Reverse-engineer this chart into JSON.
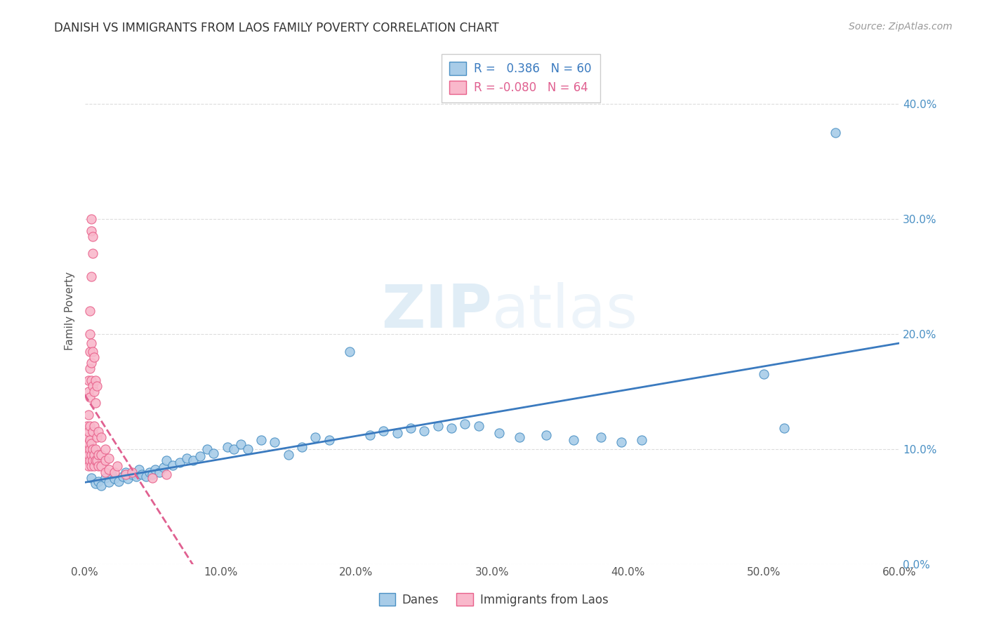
{
  "title": "DANISH VS IMMIGRANTS FROM LAOS FAMILY POVERTY CORRELATION CHART",
  "source": "Source: ZipAtlas.com",
  "ylabel": "Family Poverty",
  "xlim": [
    0.0,
    0.6
  ],
  "ylim": [
    0.0,
    0.44
  ],
  "xticks": [
    0.0,
    0.1,
    0.2,
    0.3,
    0.4,
    0.5,
    0.6
  ],
  "xticklabels": [
    "0.0%",
    "10.0%",
    "20.0%",
    "30.0%",
    "40.0%",
    "50.0%",
    "60.0%"
  ],
  "yticks": [
    0.0,
    0.1,
    0.2,
    0.3,
    0.4
  ],
  "yticklabels_right": [
    "0.0%",
    "10.0%",
    "20.0%",
    "30.0%",
    "40.0%"
  ],
  "legend_blue_label": "Danes",
  "legend_pink_label": "Immigrants from Laos",
  "blue_color": "#a8cce8",
  "pink_color": "#f9b8cb",
  "blue_edge_color": "#4a90c4",
  "pink_edge_color": "#e8608a",
  "blue_line_color": "#3a7abf",
  "pink_line_color": "#e06090",
  "blue_scatter": [
    [
      0.005,
      0.075
    ],
    [
      0.008,
      0.07
    ],
    [
      0.01,
      0.072
    ],
    [
      0.012,
      0.068
    ],
    [
      0.015,
      0.075
    ],
    [
      0.018,
      0.071
    ],
    [
      0.02,
      0.078
    ],
    [
      0.022,
      0.074
    ],
    [
      0.025,
      0.072
    ],
    [
      0.028,
      0.076
    ],
    [
      0.03,
      0.08
    ],
    [
      0.032,
      0.074
    ],
    [
      0.035,
      0.078
    ],
    [
      0.038,
      0.076
    ],
    [
      0.04,
      0.082
    ],
    [
      0.042,
      0.078
    ],
    [
      0.045,
      0.076
    ],
    [
      0.048,
      0.08
    ],
    [
      0.05,
      0.078
    ],
    [
      0.052,
      0.082
    ],
    [
      0.055,
      0.08
    ],
    [
      0.058,
      0.084
    ],
    [
      0.06,
      0.09
    ],
    [
      0.065,
      0.086
    ],
    [
      0.07,
      0.088
    ],
    [
      0.075,
      0.092
    ],
    [
      0.08,
      0.09
    ],
    [
      0.085,
      0.094
    ],
    [
      0.09,
      0.1
    ],
    [
      0.095,
      0.096
    ],
    [
      0.105,
      0.102
    ],
    [
      0.11,
      0.1
    ],
    [
      0.115,
      0.104
    ],
    [
      0.12,
      0.1
    ],
    [
      0.13,
      0.108
    ],
    [
      0.14,
      0.106
    ],
    [
      0.15,
      0.095
    ],
    [
      0.16,
      0.102
    ],
    [
      0.17,
      0.11
    ],
    [
      0.18,
      0.108
    ],
    [
      0.195,
      0.185
    ],
    [
      0.21,
      0.112
    ],
    [
      0.22,
      0.116
    ],
    [
      0.23,
      0.114
    ],
    [
      0.24,
      0.118
    ],
    [
      0.25,
      0.116
    ],
    [
      0.26,
      0.12
    ],
    [
      0.27,
      0.118
    ],
    [
      0.28,
      0.122
    ],
    [
      0.29,
      0.12
    ],
    [
      0.305,
      0.114
    ],
    [
      0.32,
      0.11
    ],
    [
      0.34,
      0.112
    ],
    [
      0.36,
      0.108
    ],
    [
      0.38,
      0.11
    ],
    [
      0.395,
      0.106
    ],
    [
      0.41,
      0.108
    ],
    [
      0.5,
      0.165
    ],
    [
      0.515,
      0.118
    ],
    [
      0.553,
      0.375
    ]
  ],
  "pink_scatter": [
    [
      0.002,
      0.09
    ],
    [
      0.002,
      0.1
    ],
    [
      0.002,
      0.11
    ],
    [
      0.002,
      0.12
    ],
    [
      0.003,
      0.085
    ],
    [
      0.003,
      0.095
    ],
    [
      0.003,
      0.105
    ],
    [
      0.003,
      0.115
    ],
    [
      0.003,
      0.13
    ],
    [
      0.003,
      0.15
    ],
    [
      0.003,
      0.16
    ],
    [
      0.004,
      0.09
    ],
    [
      0.004,
      0.1
    ],
    [
      0.004,
      0.108
    ],
    [
      0.004,
      0.12
    ],
    [
      0.004,
      0.145
    ],
    [
      0.004,
      0.17
    ],
    [
      0.004,
      0.185
    ],
    [
      0.004,
      0.2
    ],
    [
      0.004,
      0.22
    ],
    [
      0.005,
      0.085
    ],
    [
      0.005,
      0.095
    ],
    [
      0.005,
      0.105
    ],
    [
      0.005,
      0.16
    ],
    [
      0.005,
      0.175
    ],
    [
      0.005,
      0.192
    ],
    [
      0.005,
      0.25
    ],
    [
      0.005,
      0.29
    ],
    [
      0.005,
      0.3
    ],
    [
      0.006,
      0.09
    ],
    [
      0.006,
      0.1
    ],
    [
      0.006,
      0.115
    ],
    [
      0.006,
      0.155
    ],
    [
      0.006,
      0.185
    ],
    [
      0.006,
      0.27
    ],
    [
      0.006,
      0.285
    ],
    [
      0.007,
      0.085
    ],
    [
      0.007,
      0.095
    ],
    [
      0.007,
      0.12
    ],
    [
      0.007,
      0.15
    ],
    [
      0.007,
      0.18
    ],
    [
      0.008,
      0.09
    ],
    [
      0.008,
      0.1
    ],
    [
      0.008,
      0.14
    ],
    [
      0.008,
      0.16
    ],
    [
      0.009,
      0.09
    ],
    [
      0.009,
      0.11
    ],
    [
      0.009,
      0.155
    ],
    [
      0.01,
      0.085
    ],
    [
      0.01,
      0.095
    ],
    [
      0.01,
      0.115
    ],
    [
      0.012,
      0.085
    ],
    [
      0.012,
      0.095
    ],
    [
      0.012,
      0.11
    ],
    [
      0.015,
      0.08
    ],
    [
      0.015,
      0.09
    ],
    [
      0.015,
      0.1
    ],
    [
      0.018,
      0.082
    ],
    [
      0.018,
      0.092
    ],
    [
      0.022,
      0.08
    ],
    [
      0.024,
      0.085
    ],
    [
      0.03,
      0.078
    ],
    [
      0.035,
      0.08
    ],
    [
      0.05,
      0.075
    ],
    [
      0.06,
      0.078
    ]
  ],
  "watermark_zip": "ZIP",
  "watermark_atlas": "atlas",
  "background_color": "#ffffff",
  "grid_color": "#dddddd",
  "title_fontsize": 12,
  "axis_label_fontsize": 11,
  "tick_fontsize": 11,
  "legend_fontsize": 12,
  "source_fontsize": 10
}
